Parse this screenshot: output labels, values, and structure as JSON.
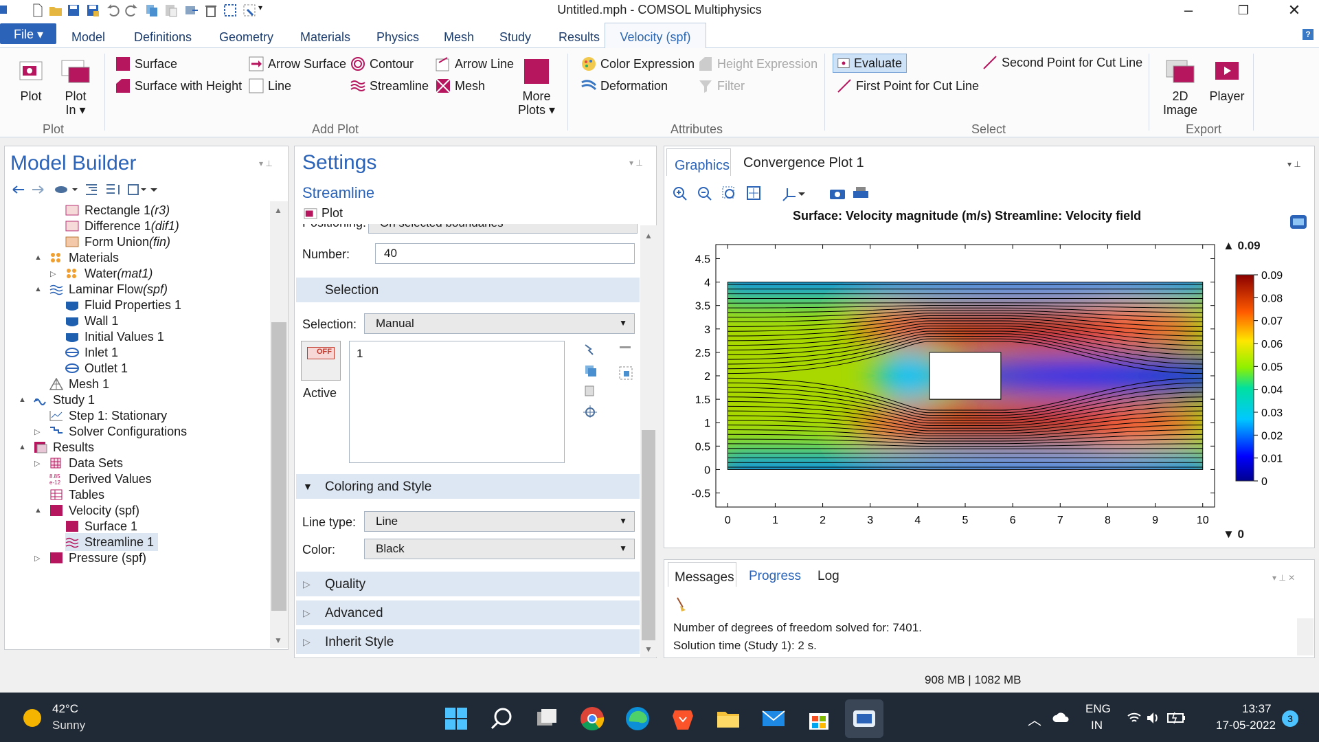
{
  "window": {
    "title": "Untitled.mph - COMSOL Multiphysics"
  },
  "tabs": {
    "file": "File ▾",
    "items": [
      "Model",
      "Definitions",
      "Geometry",
      "Materials",
      "Physics",
      "Mesh",
      "Study",
      "Results"
    ],
    "active": "Velocity (spf)",
    "help": "?"
  },
  "ribbon": {
    "plot": "Plot",
    "plot_in": "Plot",
    "plot_in_2": "In ▾",
    "group_plot": "Plot",
    "surface": "Surface",
    "surface_height": "Surface with Height",
    "arrow_surface": "Arrow Surface",
    "line": "Line",
    "contour": "Contour",
    "streamline": "Streamline",
    "arrow_line": "Arrow Line",
    "mesh": "Mesh",
    "more_plots": "More",
    "more_plots_2": "Plots ▾",
    "group_add_plot": "Add Plot",
    "color_expression": "Color Expression",
    "deformation": "Deformation",
    "height_expression": "Height Expression",
    "filter": "Filter",
    "group_attributes": "Attributes",
    "evaluate": "Evaluate",
    "first_point": "First Point for Cut Line",
    "second_point": "Second Point for Cut Line",
    "group_select": "Select",
    "image_2d": "2D",
    "image_2d_2": "Image",
    "player": "Player",
    "group_export": "Export"
  },
  "model_builder": {
    "title": "Model Builder",
    "tree": [
      {
        "label": "Rectangle 1 ",
        "tag": "(r3)"
      },
      {
        "label": "Difference 1 ",
        "tag": "(dif1)"
      },
      {
        "label": "Form Union ",
        "tag": "(fin)"
      },
      {
        "label": "Materials",
        "tag": ""
      },
      {
        "label": "Water ",
        "tag": "(mat1)"
      },
      {
        "label": "Laminar Flow ",
        "tag": "(spf)"
      },
      {
        "label": "Fluid Properties 1",
        "tag": ""
      },
      {
        "label": "Wall 1",
        "tag": ""
      },
      {
        "label": "Initial Values 1",
        "tag": ""
      },
      {
        "label": "Inlet 1",
        "tag": ""
      },
      {
        "label": "Outlet 1",
        "tag": ""
      },
      {
        "label": "Mesh 1",
        "tag": ""
      },
      {
        "label": "Study 1",
        "tag": ""
      },
      {
        "label": "Step 1: Stationary",
        "tag": ""
      },
      {
        "label": "Solver Configurations",
        "tag": ""
      },
      {
        "label": "Results",
        "tag": ""
      },
      {
        "label": "Data Sets",
        "tag": ""
      },
      {
        "label": "Derived Values",
        "tag": ""
      },
      {
        "label": "Tables",
        "tag": ""
      },
      {
        "label": "Velocity (spf)",
        "tag": ""
      },
      {
        "label": "Surface 1",
        "tag": ""
      },
      {
        "label": "Streamline 1",
        "tag": ""
      },
      {
        "label": "Pressure (spf)",
        "tag": ""
      }
    ]
  },
  "settings": {
    "title": "Settings",
    "subtitle": "Streamline",
    "plot_button": "Plot",
    "positioning_label": "Positioning:",
    "positioning_value": "On selected boundaries",
    "number_label": "Number:",
    "number_value": "40",
    "selection_section": "Selection",
    "selection_label": "Selection:",
    "selection_value": "Manual",
    "selection_item": "1",
    "active_label": "Active",
    "off_label": "OFF",
    "coloring_section": "Coloring and Style",
    "line_type_label": "Line type:",
    "line_type_value": "Line",
    "color_label": "Color:",
    "color_value": "Black",
    "quality_section": "Quality",
    "advanced_section": "Advanced",
    "inherit_section": "Inherit Style"
  },
  "graphics": {
    "tab_graphics": "Graphics",
    "tab_convergence": "Convergence Plot 1",
    "plot_title": "Surface: Velocity magnitude (m/s)  Streamline: Velocity field",
    "colorbar_max": "▲ 0.09",
    "colorbar_min": "▼ 0"
  },
  "chart_data": {
    "type": "heatmap",
    "title": "Surface: Velocity magnitude (m/s)  Streamline: Velocity field",
    "x_ticks": [
      "0",
      "1",
      "2",
      "3",
      "4",
      "5",
      "6",
      "7",
      "8",
      "9",
      "10"
    ],
    "y_ticks": [
      "-0.5",
      "0",
      "0.5",
      "1",
      "1.5",
      "2",
      "2.5",
      "3",
      "3.5",
      "4",
      "4.5"
    ],
    "xlim": [
      -0.25,
      10.25
    ],
    "ylim": [
      -0.8,
      4.8
    ],
    "domain": {
      "x": [
        0,
        10
      ],
      "y": [
        0,
        4
      ]
    },
    "obstacle": {
      "x": [
        4.25,
        5.75
      ],
      "y": [
        1.5,
        2.5
      ]
    },
    "colorbar_ticks": [
      "0.09",
      "0.08",
      "0.07",
      "0.06",
      "0.05",
      "0.04",
      "0.03",
      "0.02",
      "0.01",
      "0"
    ],
    "colorbar_range": [
      0,
      0.09
    ],
    "colormap": "rainbow",
    "streamline_count": 40,
    "streamline_color": "#000000"
  },
  "messages": {
    "tab_messages": "Messages",
    "tab_progress": "Progress",
    "tab_log": "Log",
    "line1": "Number of degrees of freedom solved for: 7401.",
    "line2": "Solution time (Study 1): 2 s."
  },
  "status": {
    "memory": "908 MB | 1082 MB"
  },
  "taskbar": {
    "temperature": "42°C",
    "weather": "Sunny",
    "lang1": "ENG",
    "lang2": "IN",
    "time": "13:37",
    "date": "17-05-2022",
    "notifications": "3"
  },
  "colors": {
    "accent": "#2a63b8",
    "section": "#dde7f3",
    "taskbar": "#202a36"
  }
}
